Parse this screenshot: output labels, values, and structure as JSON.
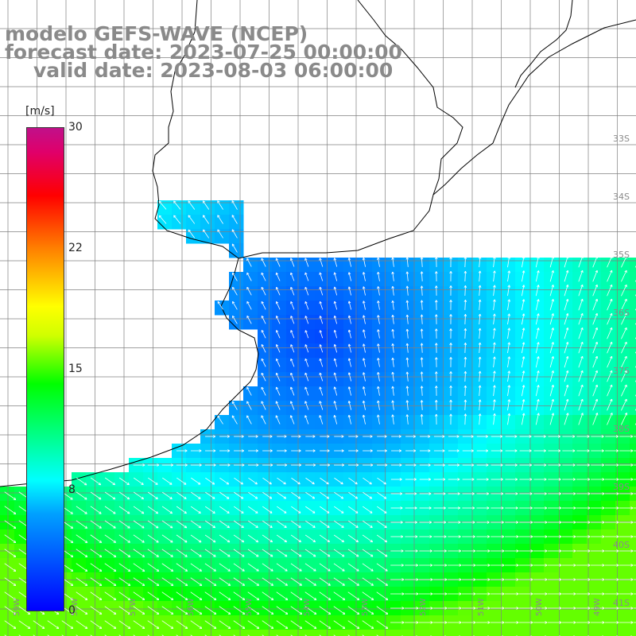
{
  "title": {
    "line1": "modelo GEFS-WAVE (NCEP)",
    "line2": "forecast date: 2023-07-25 00:00:00",
    "line3": "valid date: 2023-08-03 06:00:00"
  },
  "colorbar": {
    "unit": "[m/s]",
    "ticks": [
      "30",
      "22",
      "15",
      "8",
      "0"
    ],
    "colors": [
      "#0000ff",
      "#00a0ff",
      "#00ffff",
      "#00ff00",
      "#ffff00",
      "#ff8000",
      "#ff0000",
      "#c0108a"
    ]
  },
  "grid": {
    "lat_labels": [
      "33S",
      "34S",
      "35S",
      "36S",
      "37S",
      "38S",
      "39S",
      "40S",
      "41S"
    ],
    "lon_labels": [
      "59W",
      "58W",
      "57W",
      "56W",
      "55W",
      "54W",
      "53W",
      "52W",
      "51W",
      "50W",
      "49W"
    ]
  }
}
